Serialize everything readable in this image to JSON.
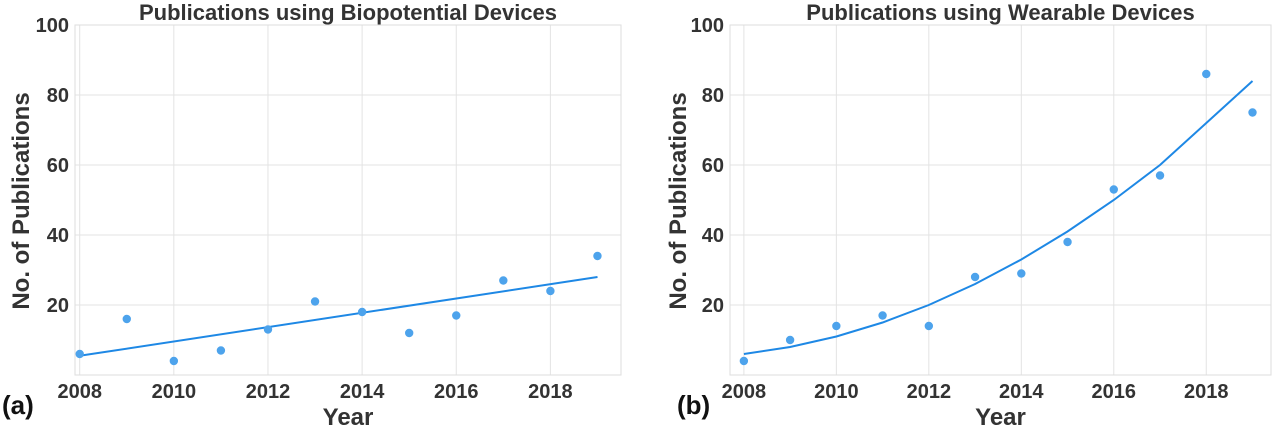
{
  "chart_data": [
    {
      "type": "scatter",
      "panel_label": "(a)",
      "title": "Publications using Biopotential Devices",
      "xlabel": "Year",
      "ylabel": "No. of Publications",
      "xlim": [
        2007.9,
        2019.5
      ],
      "ylim": [
        0,
        100
      ],
      "xticks": [
        2008,
        2010,
        2012,
        2014,
        2016,
        2018
      ],
      "yticks": [
        20,
        40,
        60,
        80,
        100
      ],
      "grid": true,
      "point_color": "#4da3ec",
      "line_color": "#1e88e5",
      "series": [
        {
          "x": [
            2008,
            2009,
            2010,
            2011,
            2012,
            2013,
            2014,
            2015,
            2016,
            2017,
            2018,
            2019
          ],
          "values": [
            6,
            16,
            4,
            7,
            13,
            21,
            18,
            12,
            17,
            27,
            24,
            34
          ]
        }
      ],
      "fit": {
        "x": [
          2008,
          2019
        ],
        "y": [
          5.5,
          28
        ]
      }
    },
    {
      "type": "scatter",
      "panel_label": "(b)",
      "title": "Publications using Wearable Devices",
      "xlabel": "Year",
      "ylabel": "No. of Publications",
      "xlim": [
        2007.7,
        2019.4
      ],
      "ylim": [
        0,
        100
      ],
      "xticks": [
        2008,
        2010,
        2012,
        2014,
        2016,
        2018
      ],
      "yticks": [
        20,
        40,
        60,
        80,
        100
      ],
      "grid": true,
      "point_color": "#4da3ec",
      "line_color": "#1e88e5",
      "series": [
        {
          "x": [
            2008,
            2009,
            2010,
            2011,
            2012,
            2013,
            2014,
            2015,
            2016,
            2017,
            2018,
            2019
          ],
          "values": [
            4,
            10,
            14,
            17,
            14,
            28,
            29,
            38,
            53,
            57,
            86,
            75
          ]
        }
      ],
      "fit": {
        "x": [
          2008,
          2009,
          2010,
          2011,
          2012,
          2013,
          2014,
          2015,
          2016,
          2017,
          2018,
          2019
        ],
        "y": [
          6,
          8,
          11,
          15,
          20,
          26,
          33,
          41,
          50,
          60,
          72,
          84
        ]
      }
    }
  ]
}
